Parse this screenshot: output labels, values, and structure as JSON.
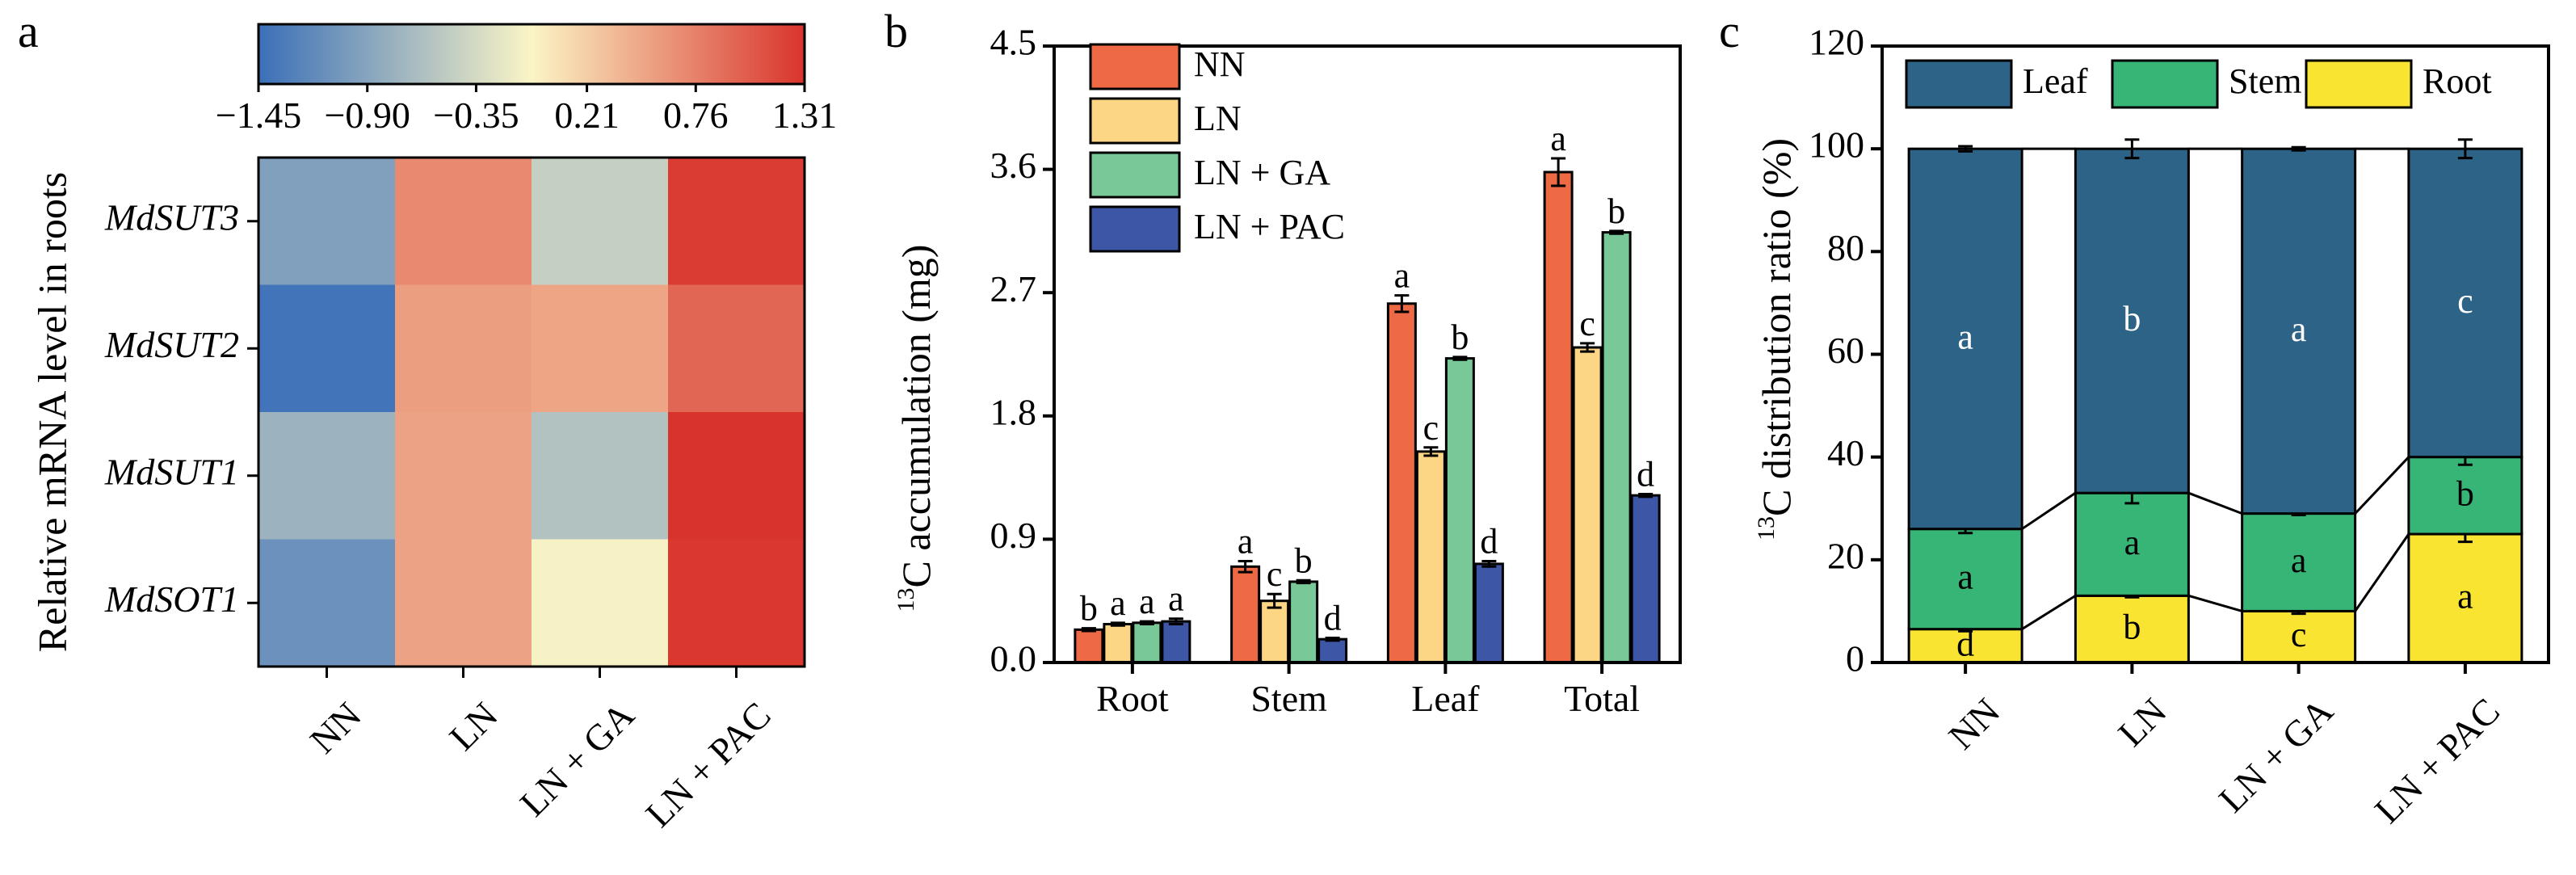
{
  "panel_labels": {
    "a": "a",
    "b": "b",
    "c": "c"
  },
  "chart_data": [
    {
      "type": "heatmap",
      "panel": "a",
      "ylabel": "Relative mRNA level in roots",
      "columns": [
        "NN",
        "LN",
        "LN + GA",
        "LN + PAC"
      ],
      "rows": [
        "MdSUT3",
        "MdSUT2",
        "MdSUT1",
        "MdSOT1"
      ],
      "values": [
        [
          -0.95,
          0.7,
          -0.45,
          1.25
        ],
        [
          -1.4,
          0.55,
          0.5,
          0.95
        ],
        [
          -0.75,
          0.52,
          -0.6,
          1.31
        ],
        [
          -1.1,
          0.52,
          -0.1,
          1.28
        ]
      ],
      "colorbar": {
        "min": -1.45,
        "max": 1.31,
        "ticks": [
          -1.45,
          -0.9,
          -0.35,
          0.21,
          0.76,
          1.31
        ],
        "tick_labels": [
          "−1.45",
          "−0.90",
          "−0.35",
          "0.21",
          "0.76",
          "1.31"
        ],
        "colors": [
          "#3a6fb8",
          "#fbf5c6",
          "#d9342c"
        ]
      }
    },
    {
      "type": "bar",
      "panel": "b",
      "ylabel_super": "13",
      "ylabel_rest": "C accumulation (mg)",
      "ylim": [
        0,
        4.5
      ],
      "yticks": [
        0,
        0.9,
        1.8,
        2.7,
        3.6,
        4.5
      ],
      "ytick_labels": [
        "0.0",
        "0.9",
        "1.8",
        "2.7",
        "3.6",
        "4.5"
      ],
      "categories": [
        "Root",
        "Stem",
        "Leaf",
        "Total"
      ],
      "series": [
        {
          "name": "NN",
          "color": "#ee6a45",
          "values": [
            0.24,
            0.7,
            2.62,
            3.58
          ],
          "errors": [
            0.01,
            0.04,
            0.06,
            0.1
          ],
          "letters": [
            "b",
            "a",
            "a",
            "a"
          ]
        },
        {
          "name": "LN",
          "color": "#fdd685",
          "values": [
            0.28,
            0.45,
            1.54,
            2.3
          ],
          "errors": [
            0.01,
            0.05,
            0.03,
            0.03
          ],
          "letters": [
            "a",
            "c",
            "c",
            "c"
          ]
        },
        {
          "name": "LN + GA",
          "color": "#79c998",
          "values": [
            0.29,
            0.59,
            2.22,
            3.14
          ],
          "errors": [
            0.01,
            0.01,
            0.01,
            0.01
          ],
          "letters": [
            "a",
            "b",
            "b",
            "b"
          ]
        },
        {
          "name": "LN + PAC",
          "color": "#3d57a6",
          "values": [
            0.3,
            0.17,
            0.72,
            1.22
          ],
          "errors": [
            0.02,
            0.01,
            0.02,
            0.01
          ],
          "letters": [
            "a",
            "d",
            "d",
            "d"
          ]
        }
      ]
    },
    {
      "type": "bar",
      "stacked": true,
      "panel": "c",
      "ylabel_super": "13",
      "ylabel_rest": "C distribution ratio (%)",
      "ylim": [
        0,
        120
      ],
      "yticks": [
        0,
        20,
        40,
        60,
        80,
        100,
        120
      ],
      "ytick_labels": [
        "0",
        "20",
        "40",
        "60",
        "80",
        "100",
        "120"
      ],
      "categories": [
        "NN",
        "LN",
        "LN + GA",
        "LN + PAC"
      ],
      "series": [
        {
          "name": "Root",
          "color": "#f9e431",
          "values": [
            6.5,
            13.0,
            10.0,
            25.0
          ],
          "errors": [
            0.4,
            0.3,
            0.5,
            1.5
          ],
          "letters": [
            "d",
            "b",
            "c",
            "a"
          ]
        },
        {
          "name": "Stem",
          "color": "#36b577",
          "values": [
            19.5,
            20.0,
            19.0,
            15.0
          ],
          "errors": [
            0.8,
            2.0,
            0.3,
            1.5
          ],
          "letters": [
            "a",
            "a",
            "a",
            "b"
          ]
        },
        {
          "name": "Leaf",
          "color": "#2d6386",
          "values": [
            74.0,
            67.0,
            71.0,
            60.0
          ],
          "errors": [
            0.5,
            1.8,
            0.3,
            1.8
          ],
          "letters": [
            "a",
            "b",
            "a",
            "c"
          ]
        }
      ],
      "legend_order": [
        "Leaf",
        "Stem",
        "Root"
      ]
    }
  ]
}
